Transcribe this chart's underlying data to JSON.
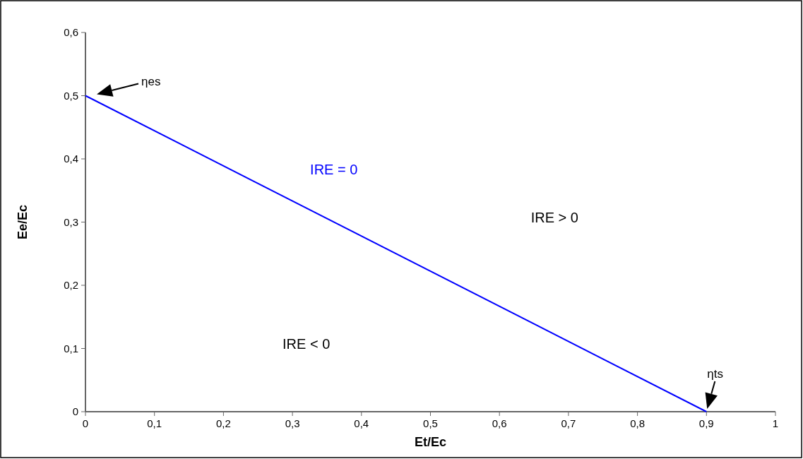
{
  "chart_data": {
    "type": "line",
    "xlabel": "Et/Ec",
    "ylabel": "Ee/Ec",
    "x": [
      0,
      0.9
    ],
    "series": [
      {
        "color": "#0000ff",
        "values": [
          0.5,
          0
        ]
      }
    ],
    "xlim": [
      0,
      1
    ],
    "ylim": [
      0,
      0.6
    ],
    "xticks": [
      0,
      {
        "value": 0.1,
        "label": "0,1"
      },
      {
        "value": 0.2,
        "label": "0,2"
      },
      {
        "value": 0.3,
        "label": "0,3"
      },
      {
        "value": 0.4,
        "label": "0,4"
      },
      {
        "value": 0.5,
        "label": "0,5"
      },
      {
        "value": 0.6,
        "label": "0,6"
      },
      {
        "value": 0.7,
        "label": "0,7"
      },
      {
        "value": 0.8,
        "label": "0,8"
      },
      {
        "value": 0.9,
        "label": "0,9"
      },
      1
    ],
    "yticks": [
      0,
      {
        "value": 0.1,
        "label": "0,1"
      },
      {
        "value": 0.2,
        "label": "0,2"
      },
      {
        "value": 0.3,
        "label": "0,3"
      },
      {
        "value": 0.4,
        "label": "0,4"
      },
      {
        "value": 0.5,
        "label": "0,5"
      },
      {
        "value": 0.6,
        "label": "0,6"
      }
    ],
    "marker": "none",
    "line_style": "solid",
    "annotations": [
      "ηes",
      "ηts",
      "IRE = 0",
      "IRE > 0",
      "IRE < 0"
    ]
  }
}
